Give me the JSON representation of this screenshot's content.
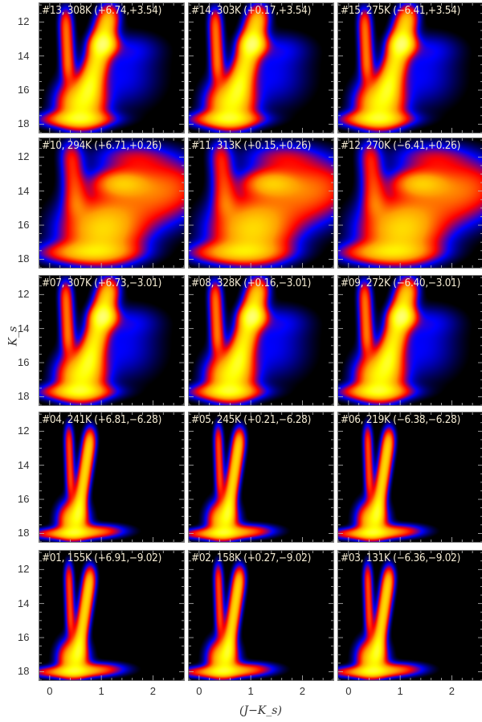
{
  "chart_data": {
    "type": "heatmap",
    "xlabel": "(J−K_s)",
    "ylabel": "K_s",
    "xlim": [
      -0.2,
      2.6
    ],
    "ylim": [
      18.5,
      10.9
    ],
    "x_ticks": [
      "0",
      "1",
      "2"
    ],
    "y_ticks": [
      "12",
      "14",
      "16",
      "18"
    ],
    "colormap": [
      "#000000",
      "#0000ff",
      "#ff0000",
      "#ffa000",
      "#ffff00"
    ],
    "panels": [
      {
        "label": "#13, 308K (+6.74,+3.54)",
        "morphology": "broad"
      },
      {
        "label": "#14, 303K (+0.17,+3.54)",
        "morphology": "broad"
      },
      {
        "label": "#15, 275K (−6.41,+3.54)",
        "morphology": "broad"
      },
      {
        "label": "#10, 294K (+6.71,+0.26)",
        "morphology": "reddened"
      },
      {
        "label": "#11, 313K (+0.15,+0.26)",
        "morphology": "reddened"
      },
      {
        "label": "#12, 270K (−6.41,+0.26)",
        "morphology": "reddened"
      },
      {
        "label": "#07, 307K (+6.73,−3.01)",
        "morphology": "broad"
      },
      {
        "label": "#08, 328K (+0.16,−3.01)",
        "morphology": "broad"
      },
      {
        "label": "#09, 272K (−6.40,−3.01)",
        "morphology": "broad"
      },
      {
        "label": "#04, 241K (+6.81,−6.28)",
        "morphology": "narrow"
      },
      {
        "label": "#05, 245K (+0.21,−6.28)",
        "morphology": "narrow"
      },
      {
        "label": "#06, 219K (−6.38,−6.28)",
        "morphology": "narrow"
      },
      {
        "label": "#01, 155K (+6.91,−9.02)",
        "morphology": "narrow"
      },
      {
        "label": "#02, 158K (+0.27,−9.02)",
        "morphology": "narrow"
      },
      {
        "label": "#03, 131K (−6.36,−9.02)",
        "morphology": "narrow"
      }
    ]
  }
}
